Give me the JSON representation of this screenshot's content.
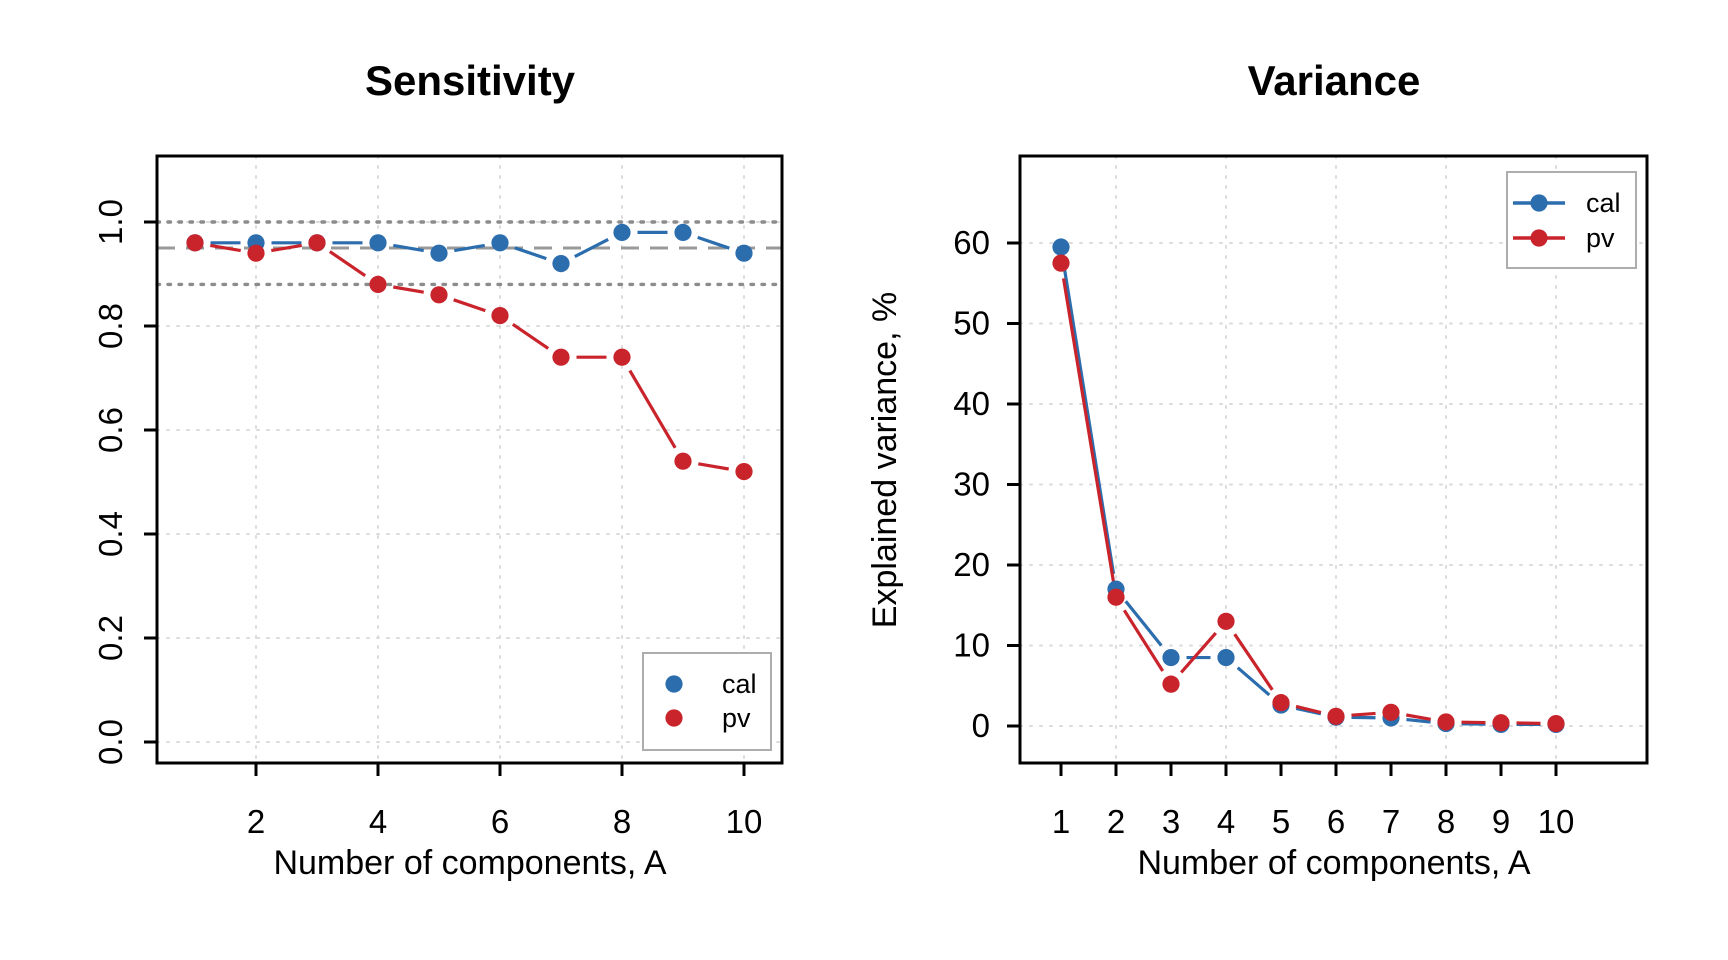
{
  "figure": {
    "background": "#ffffff",
    "text_color": "#000000",
    "frame_color": "#000000",
    "grid_color": "#dbdbdb",
    "series_colors": {
      "cal": "#2B6DAD",
      "pv": "#C9242C"
    }
  },
  "chart_data": [
    {
      "type": "line",
      "title": "Sensitivity",
      "xlabel": "Number of components, A",
      "ylabel": "",
      "x": [
        1,
        2,
        3,
        4,
        5,
        6,
        7,
        8,
        9,
        10
      ],
      "xticks": [
        2,
        4,
        6,
        8,
        10
      ],
      "grid_x": [
        2,
        4,
        6,
        8,
        10
      ],
      "yticks": [
        0.0,
        0.2,
        0.4,
        0.6,
        0.8,
        1.0
      ],
      "ytick_labels": [
        "0.0",
        "0.2",
        "0.4",
        "0.6",
        "0.8",
        "1.0"
      ],
      "ytick_rotated": true,
      "xlim": [
        0.38,
        10.62
      ],
      "ylim": [
        -0.04,
        1.13
      ],
      "grid": true,
      "series": [
        {
          "name": "cal",
          "color": "#2B6DAD",
          "values": [
            0.96,
            0.96,
            0.96,
            0.96,
            0.94,
            0.96,
            0.92,
            0.98,
            0.98,
            0.94
          ]
        },
        {
          "name": "pv",
          "color": "#C9242C",
          "values": [
            0.96,
            0.94,
            0.96,
            0.88,
            0.86,
            0.82,
            0.74,
            0.74,
            0.54,
            0.52
          ]
        }
      ],
      "ref_lines": [
        {
          "y": 0.95,
          "style": "dashed",
          "color": "#999999"
        },
        {
          "y": 1.0,
          "style": "dotted",
          "color": "#8c8c8c"
        },
        {
          "y": 0.88,
          "style": "dotted",
          "color": "#8c8c8c"
        }
      ],
      "legend": {
        "position": "bottom-right",
        "marker": "point",
        "items": [
          "cal",
          "pv"
        ]
      }
    },
    {
      "type": "line",
      "title": "Variance",
      "xlabel": "Number of components, A",
      "ylabel": "Explained variance, %",
      "x": [
        1,
        2,
        3,
        4,
        5,
        6,
        7,
        8,
        9,
        10
      ],
      "xticks": [
        1,
        2,
        3,
        4,
        5,
        6,
        7,
        8,
        9,
        10
      ],
      "grid_x": [
        2,
        4,
        6,
        8,
        10
      ],
      "yticks": [
        0,
        10,
        20,
        30,
        40,
        50,
        60
      ],
      "ytick_labels": [
        "0",
        "10",
        "20",
        "30",
        "40",
        "50",
        "60"
      ],
      "ytick_rotated": false,
      "xlim": [
        0.26,
        11.65
      ],
      "ylim": [
        -4.6,
        70.8
      ],
      "grid": true,
      "series": [
        {
          "name": "cal",
          "color": "#2B6DAD",
          "values": [
            59.5,
            17,
            8.5,
            8.5,
            2.6,
            1.1,
            1.0,
            0.3,
            0.2,
            0.2
          ]
        },
        {
          "name": "pv",
          "color": "#C9242C",
          "values": [
            57.5,
            16,
            5.2,
            13,
            2.9,
            1.2,
            1.7,
            0.5,
            0.4,
            0.3
          ]
        }
      ],
      "ref_lines": [],
      "legend": {
        "position": "top-right",
        "marker": "line-point",
        "items": [
          "cal",
          "pv"
        ]
      }
    }
  ]
}
